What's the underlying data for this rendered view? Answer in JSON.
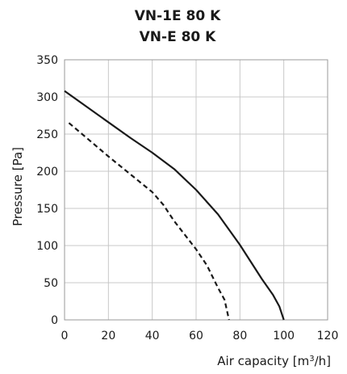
{
  "chart_data": {
    "type": "line",
    "title": [
      "VN-1E 80 K",
      "VN-E 80 K"
    ],
    "xlabel": "Air capacity [m³/h]",
    "ylabel": "Pressure [Pa]",
    "xlim": [
      0,
      120
    ],
    "ylim": [
      0,
      350
    ],
    "xticks": [
      0,
      20,
      40,
      60,
      80,
      100,
      120
    ],
    "yticks": [
      0,
      50,
      100,
      150,
      200,
      250,
      300,
      350
    ],
    "grid": true,
    "series": [
      {
        "style": "solid",
        "color": "#1a1a1a",
        "points": [
          [
            0,
            308
          ],
          [
            10,
            287
          ],
          [
            20,
            266
          ],
          [
            30,
            245
          ],
          [
            40,
            225
          ],
          [
            50,
            203
          ],
          [
            60,
            175
          ],
          [
            70,
            142
          ],
          [
            80,
            101
          ],
          [
            90,
            55
          ],
          [
            95,
            34
          ],
          [
            98,
            18
          ],
          [
            100,
            0
          ]
        ]
      },
      {
        "style": "dashed",
        "color": "#1a1a1a",
        "points": [
          [
            2,
            265
          ],
          [
            10,
            245
          ],
          [
            20,
            220
          ],
          [
            30,
            196
          ],
          [
            40,
            172
          ],
          [
            45,
            155
          ],
          [
            50,
            133
          ],
          [
            60,
            95
          ],
          [
            65,
            73
          ],
          [
            70,
            43
          ],
          [
            73,
            27
          ],
          [
            75,
            0
          ]
        ]
      }
    ]
  }
}
